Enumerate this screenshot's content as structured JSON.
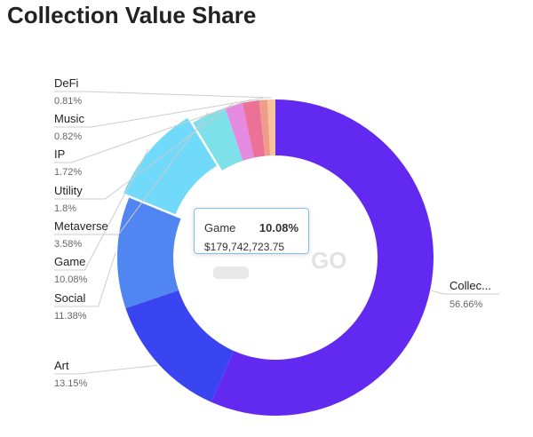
{
  "title": "Collection Value Share",
  "watermark": "GO",
  "tooltip": {
    "name": "Game",
    "percent": "10.08%",
    "value": "$179,742,723.75"
  },
  "chart_data": {
    "type": "pie",
    "variant": "donut",
    "title": "Collection Value Share",
    "highlighted": "Game",
    "slices": [
      {
        "label": "Collec...",
        "value": 56.66,
        "pct": "56.66%",
        "color": "#6229f0"
      },
      {
        "label": "Art",
        "value": 13.15,
        "pct": "13.15%",
        "color": "#3a45f2"
      },
      {
        "label": "Social",
        "value": 11.38,
        "pct": "11.38%",
        "color": "#5185f2"
      },
      {
        "label": "Game",
        "value": 10.08,
        "pct": "10.08%",
        "color": "#71d9fa"
      },
      {
        "label": "Metaverse",
        "value": 3.58,
        "pct": "3.58%",
        "color": "#7ee0e9"
      },
      {
        "label": "Utility",
        "value": 1.8,
        "pct": "1.8%",
        "color": "#e48ae0"
      },
      {
        "label": "IP",
        "value": 1.72,
        "pct": "1.72%",
        "color": "#ec7196"
      },
      {
        "label": "Music",
        "value": 0.82,
        "pct": "0.82%",
        "color": "#f09c88"
      },
      {
        "label": "DeFi",
        "value": 0.81,
        "pct": "0.81%",
        "color": "#f7c49b"
      }
    ]
  }
}
